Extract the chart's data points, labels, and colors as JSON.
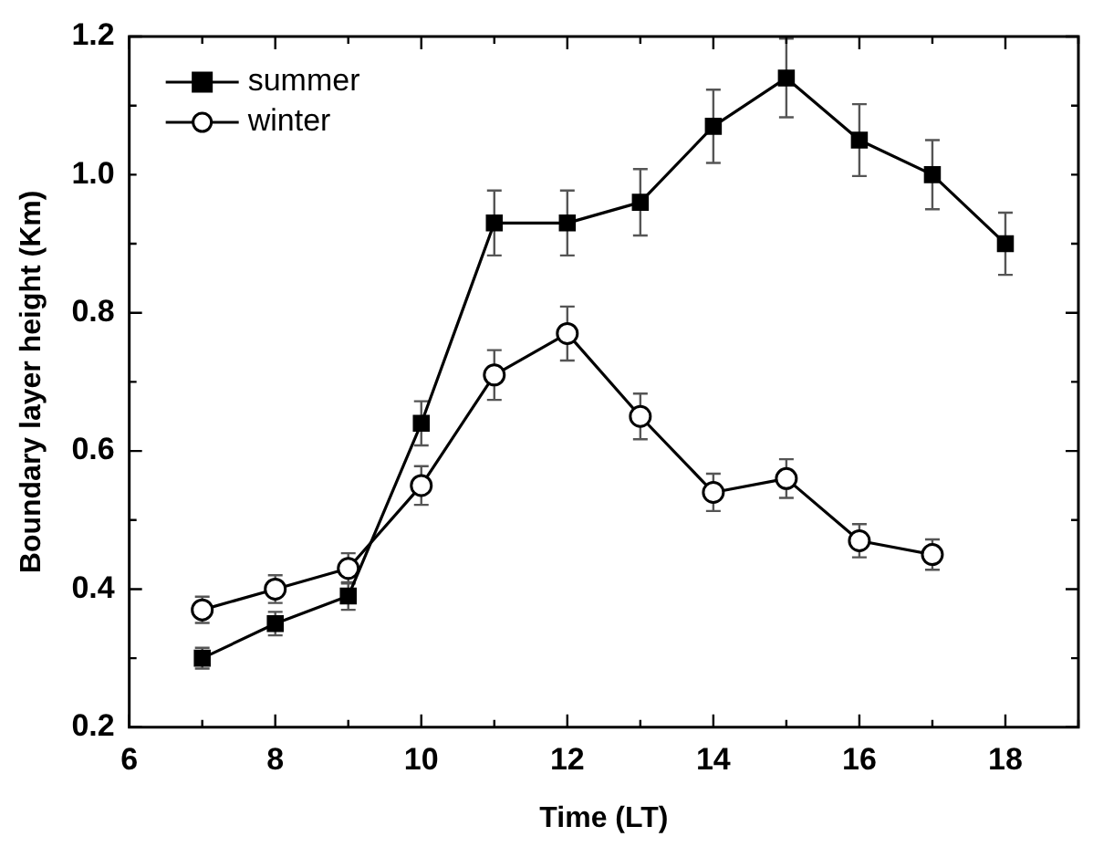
{
  "chart_data": {
    "type": "line",
    "xlabel": "Time (LT)",
    "ylabel": "Boundary layer height (Km)",
    "xlim": [
      6,
      19
    ],
    "ylim": [
      0.2,
      1.2
    ],
    "xticks": [
      6,
      {
        "value": 7,
        "label": null
      },
      8,
      {
        "value": 9,
        "label": null
      },
      10,
      {
        "value": 11,
        "label": null
      },
      12,
      {
        "value": 13,
        "label": null
      },
      14,
      {
        "value": 15,
        "label": null
      },
      16,
      {
        "value": 17,
        "label": null
      },
      18,
      {
        "value": 19,
        "label": null
      }
    ],
    "yticks": [
      0.2,
      {
        "value": 0.3,
        "label": null
      },
      0.4,
      {
        "value": 0.5,
        "label": null
      },
      0.6,
      {
        "value": 0.7,
        "label": null
      },
      0.8,
      {
        "value": 0.9,
        "label": null
      },
      {
        "value": 1.0,
        "label": "1.0"
      },
      {
        "value": 1.1,
        "label": null
      },
      1.2
    ],
    "legend": "top left",
    "grid": false,
    "line_style": "solid",
    "series": [
      {
        "name": "summer",
        "color": "#000000",
        "marker": "square",
        "x": [
          7,
          8,
          9,
          10,
          11,
          12,
          13,
          14,
          15,
          16,
          17,
          18
        ],
        "values": [
          0.3,
          0.35,
          0.39,
          0.64,
          0.93,
          0.93,
          0.96,
          1.07,
          1.14,
          1.05,
          1.0,
          0.9
        ],
        "errors": [
          0.015,
          0.017,
          0.02,
          0.032,
          0.047,
          0.047,
          0.048,
          0.053,
          0.057,
          0.052,
          0.05,
          0.045
        ]
      },
      {
        "name": "winter",
        "color": "#000000",
        "marker": "circle",
        "x": [
          7,
          8,
          9,
          10,
          11,
          12,
          13,
          14,
          15,
          16,
          17
        ],
        "values": [
          0.37,
          0.4,
          0.43,
          0.55,
          0.71,
          0.77,
          0.65,
          0.54,
          0.56,
          0.47,
          0.45
        ],
        "errors": [
          0.019,
          0.02,
          0.022,
          0.028,
          0.036,
          0.039,
          0.033,
          0.027,
          0.028,
          0.024,
          0.022
        ]
      }
    ]
  }
}
